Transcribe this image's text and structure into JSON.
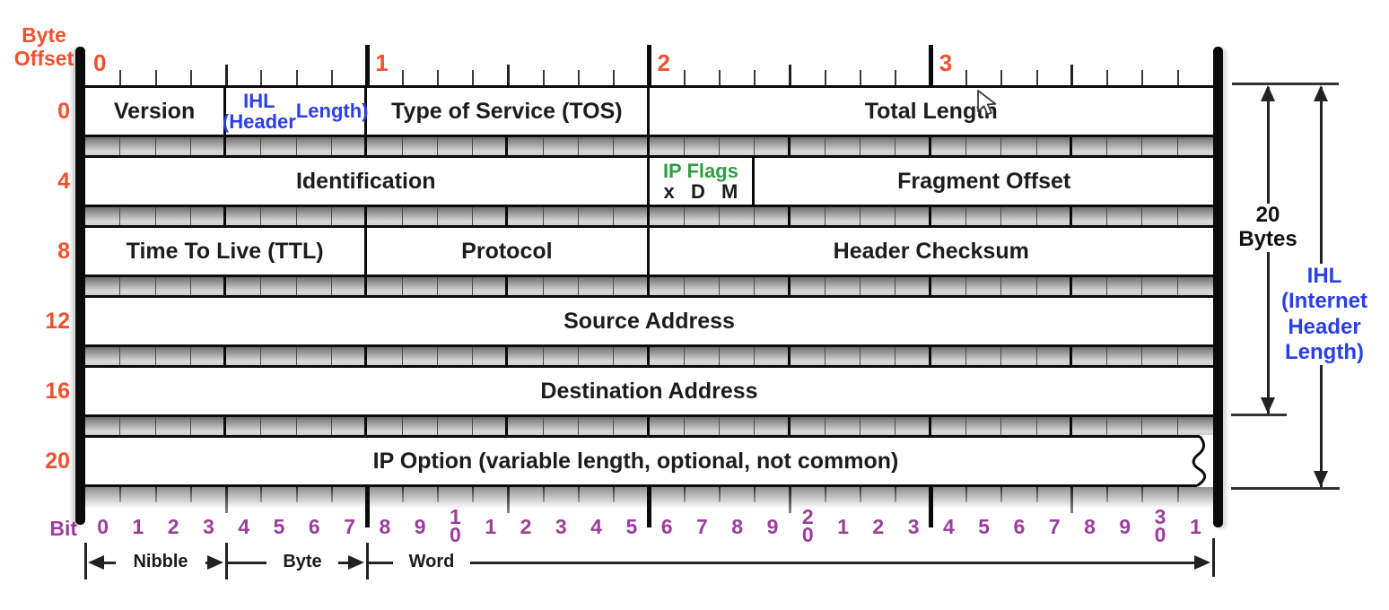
{
  "colors": {
    "accent_orange": "#f0512e",
    "purple": "#9c3c9e",
    "blue": "#2b3fe8",
    "green": "#2f9e41",
    "border_black": "#0a0a0a"
  },
  "axes": {
    "byte_offset_title": [
      "Byte",
      "Offset"
    ],
    "top_byte_numbers": [
      "0",
      "1",
      "2",
      "3"
    ],
    "byte_offsets": [
      "0",
      "4",
      "8",
      "12",
      "16",
      "20"
    ],
    "bit_axis_label": "Bit",
    "bit_numbers": [
      "0",
      "1",
      "2",
      "3",
      "4",
      "5",
      "6",
      "7",
      "8",
      "9",
      "10",
      "1",
      "2",
      "3",
      "4",
      "5",
      "6",
      "7",
      "8",
      "9",
      "20",
      "1",
      "2",
      "3",
      "4",
      "5",
      "6",
      "7",
      "8",
      "9",
      "30",
      "1"
    ]
  },
  "rows": [
    {
      "offset": "0",
      "cells": [
        {
          "label": "Version",
          "bits": 4
        },
        {
          "label": "IHL (Header Length)",
          "bits": 4,
          "color": "blue",
          "wrap": [
            "IHL (Header",
            "Length)"
          ]
        },
        {
          "label": "Type of Service (TOS)",
          "bits": 8
        },
        {
          "label": "Total Length",
          "bits": 16
        }
      ]
    },
    {
      "offset": "4",
      "cells": [
        {
          "label": "Identification",
          "bits": 16
        },
        {
          "label": "IP Flags",
          "bits": 3,
          "color": "green",
          "flags": [
            "x",
            "D",
            "M"
          ]
        },
        {
          "label": "Fragment Offset",
          "bits": 13
        }
      ]
    },
    {
      "offset": "8",
      "cells": [
        {
          "label": "Time To Live (TTL)",
          "bits": 8
        },
        {
          "label": "Protocol",
          "bits": 8
        },
        {
          "label": "Header Checksum",
          "bits": 16
        }
      ]
    },
    {
      "offset": "12",
      "cells": [
        {
          "label": "Source Address",
          "bits": 32
        }
      ]
    },
    {
      "offset": "16",
      "cells": [
        {
          "label": "Destination Address",
          "bits": 32
        }
      ]
    },
    {
      "offset": "20",
      "cells": [
        {
          "label": "IP Option (variable length, optional, not common)",
          "bits": 32,
          "torn": true
        }
      ]
    }
  ],
  "brackets": [
    {
      "label": "Nibble",
      "from_bit": 0,
      "to_bit": 4,
      "arrows": "both"
    },
    {
      "label": "Byte",
      "from_bit": 4,
      "to_bit": 8,
      "arrows": "right"
    },
    {
      "label": "Word",
      "from_bit": 8,
      "to_bit": 32,
      "arrows": "right"
    }
  ],
  "annotations": {
    "total_size": [
      "20",
      "Bytes"
    ],
    "ihl": [
      "IHL",
      "(Internet",
      "Header",
      "Length)"
    ]
  },
  "cursor": {
    "shape": "arrow",
    "over": "Total Length"
  }
}
